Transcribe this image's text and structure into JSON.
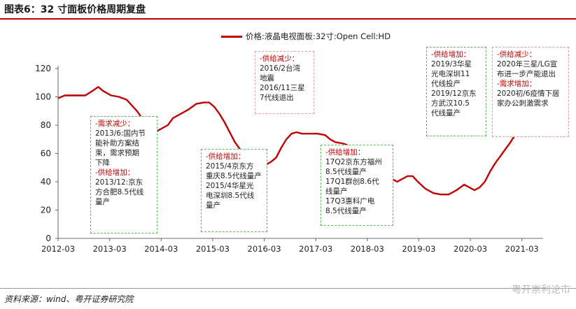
{
  "page": {
    "figure_title": "图表6：32 寸面板价格周期复盘",
    "source": "资料来源：wind、粤开证券研究院",
    "watermark": "粤开崇利论市"
  },
  "colors": {
    "line": "#c00000",
    "green_box": "#5cb85c",
    "red_box": "#e39a9a",
    "header_red": "#c00000"
  },
  "chart_data": {
    "type": "line",
    "title": "",
    "xlabel": "",
    "ylabel": "",
    "legend": "top-center",
    "grid": false,
    "ylim": [
      0,
      120
    ],
    "yticks": [
      0,
      20,
      40,
      60,
      80,
      100,
      120
    ],
    "xlim": [
      2012.17,
      2021.5
    ],
    "xticks": [
      {
        "x": 2012.17,
        "label": "2012-03"
      },
      {
        "x": 2013.17,
        "label": "2013-03"
      },
      {
        "x": 2014.17,
        "label": "2014-03"
      },
      {
        "x": 2015.17,
        "label": "2015-03"
      },
      {
        "x": 2016.17,
        "label": "2016-03"
      },
      {
        "x": 2017.17,
        "label": "2017-03"
      },
      {
        "x": 2018.17,
        "label": "2018-03"
      },
      {
        "x": 2019.17,
        "label": "2019-03"
      },
      {
        "x": 2020.17,
        "label": "2020-03"
      },
      {
        "x": 2021.17,
        "label": "2021-03"
      }
    ],
    "series": [
      {
        "name": "价格:液晶电视面板:32寸:Open Cell:HD",
        "points": [
          [
            2012.17,
            99
          ],
          [
            2012.3,
            101
          ],
          [
            2012.5,
            101
          ],
          [
            2012.7,
            101
          ],
          [
            2012.83,
            104
          ],
          [
            2012.95,
            107
          ],
          [
            2013.05,
            104
          ],
          [
            2013.2,
            101
          ],
          [
            2013.35,
            100
          ],
          [
            2013.5,
            98
          ],
          [
            2013.6,
            94
          ],
          [
            2013.7,
            90
          ],
          [
            2013.8,
            85
          ],
          [
            2013.9,
            80
          ],
          [
            2014.0,
            78
          ],
          [
            2014.1,
            76
          ],
          [
            2014.2,
            78
          ],
          [
            2014.3,
            80
          ],
          [
            2014.4,
            85
          ],
          [
            2014.55,
            88
          ],
          [
            2014.7,
            91
          ],
          [
            2014.85,
            95
          ],
          [
            2015.0,
            96
          ],
          [
            2015.1,
            96
          ],
          [
            2015.2,
            93
          ],
          [
            2015.3,
            88
          ],
          [
            2015.4,
            82
          ],
          [
            2015.5,
            75
          ],
          [
            2015.6,
            68
          ],
          [
            2015.7,
            63
          ],
          [
            2015.8,
            59
          ],
          [
            2015.9,
            56
          ],
          [
            2016.0,
            55
          ],
          [
            2016.1,
            53
          ],
          [
            2016.2,
            52
          ],
          [
            2016.3,
            54
          ],
          [
            2016.4,
            57
          ],
          [
            2016.5,
            64
          ],
          [
            2016.6,
            70
          ],
          [
            2016.7,
            74
          ],
          [
            2016.8,
            75
          ],
          [
            2016.9,
            74
          ],
          [
            2017.0,
            74
          ],
          [
            2017.2,
            74
          ],
          [
            2017.35,
            73
          ],
          [
            2017.45,
            70
          ],
          [
            2017.55,
            68
          ],
          [
            2017.7,
            67
          ],
          [
            2017.85,
            65
          ],
          [
            2017.95,
            61
          ],
          [
            2018.05,
            54
          ],
          [
            2018.12,
            45
          ],
          [
            2018.2,
            51
          ],
          [
            2018.3,
            55
          ],
          [
            2018.38,
            50
          ],
          [
            2018.45,
            46
          ],
          [
            2018.55,
            44
          ],
          [
            2018.65,
            42
          ],
          [
            2018.75,
            40
          ],
          [
            2018.85,
            42
          ],
          [
            2018.95,
            44
          ],
          [
            2019.05,
            44
          ],
          [
            2019.15,
            40
          ],
          [
            2019.3,
            35
          ],
          [
            2019.45,
            32
          ],
          [
            2019.6,
            31
          ],
          [
            2019.75,
            31
          ],
          [
            2019.9,
            34
          ],
          [
            2020.05,
            38
          ],
          [
            2020.15,
            36
          ],
          [
            2020.25,
            34
          ],
          [
            2020.35,
            36
          ],
          [
            2020.45,
            40
          ],
          [
            2020.55,
            47
          ],
          [
            2020.65,
            53
          ],
          [
            2020.75,
            58
          ],
          [
            2020.85,
            63
          ],
          [
            2020.95,
            68
          ],
          [
            2021.05,
            74
          ],
          [
            2021.15,
            80
          ],
          [
            2021.2,
            85
          ]
        ]
      }
    ]
  },
  "annotations": [
    {
      "color": "green",
      "lines": [
        {
          "t": "-需求减少：",
          "hd": true
        },
        {
          "t": "2013/6:国内节"
        },
        {
          "t": "能补助方案结"
        },
        {
          "t": "束，需求预期"
        },
        {
          "t": "下降"
        },
        {
          "t": "-供给增加：",
          "hd": true
        },
        {
          "t": "2013/12:京东"
        },
        {
          "t": "方合肥8.5代线"
        },
        {
          "t": "量产"
        }
      ]
    },
    {
      "color": "red",
      "lines": [
        {
          "t": "-供给减少：",
          "hd": true
        },
        {
          "t": "2016/2台湾"
        },
        {
          "t": "地震"
        },
        {
          "t": "2016/11三星"
        },
        {
          "t": "7代线退出"
        }
      ]
    },
    {
      "color": "green",
      "lines": [
        {
          "t": "-供给增加：",
          "hd": true
        },
        {
          "t": "2015/4京东方"
        },
        {
          "t": "重庆8.5代线量产"
        },
        {
          "t": "2015/4华星光"
        },
        {
          "t": "电深圳8.5代线"
        },
        {
          "t": "量产"
        }
      ]
    },
    {
      "color": "green",
      "lines": [
        {
          "t": "-供给增加：",
          "hd": true
        },
        {
          "t": "17Q2京东方福州"
        },
        {
          "t": "8.5代线量产"
        },
        {
          "t": "17Q1群创8.6代"
        },
        {
          "t": "线量产"
        },
        {
          "t": "17Q3惠科广电"
        },
        {
          "t": "8.5代线量产"
        }
      ]
    },
    {
      "color": "green",
      "lines": [
        {
          "t": "-供给增加：",
          "hd": true
        },
        {
          "t": "2019/3华星"
        },
        {
          "t": "光电深圳11"
        },
        {
          "t": "代线投产"
        },
        {
          "t": "2019/12京东"
        },
        {
          "t": "方武汉10.5"
        },
        {
          "t": "代线量产"
        }
      ]
    },
    {
      "color": "red",
      "lines": [
        {
          "t": "-供给减少：",
          "hd": true
        },
        {
          "t": "2020年三星/LG宣"
        },
        {
          "t": "布进一步产能退出"
        },
        {
          "t": "-需求增加：",
          "hd": true
        },
        {
          "t": "2020初/6疫情下居"
        },
        {
          "t": "家办公刺激需求"
        }
      ]
    }
  ]
}
